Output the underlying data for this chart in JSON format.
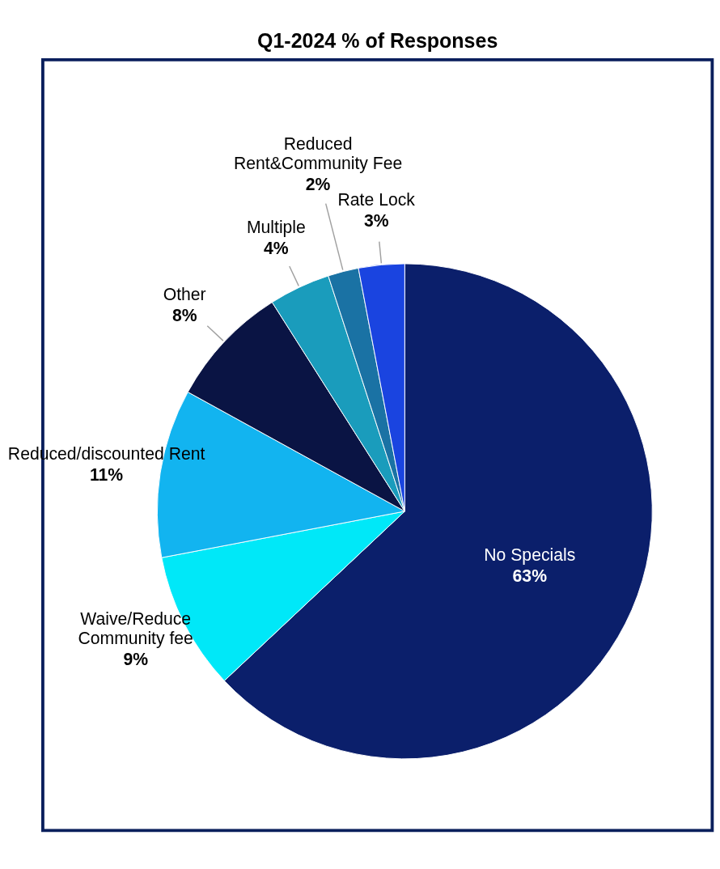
{
  "chart_data": {
    "type": "pie",
    "title": "Q1-2024 % of Responses",
    "categories": [
      "No Specials",
      "Waive/Reduce Community fee",
      "Reduced/discounted Rent",
      "Other",
      "Multiple",
      "Reduced Rent&Community Fee",
      "Rate Lock"
    ],
    "values": [
      63,
      9,
      11,
      8,
      4,
      2,
      3
    ],
    "value_labels": [
      "63%",
      "9%",
      "11%",
      "8%",
      "4%",
      "2%",
      "3%"
    ],
    "colors": [
      "#0b1f6b",
      "#00e8f8",
      "#12b4f0",
      "#0a1444",
      "#1a9cbc",
      "#1a72a4",
      "#1a44e0"
    ],
    "legend": false
  }
}
